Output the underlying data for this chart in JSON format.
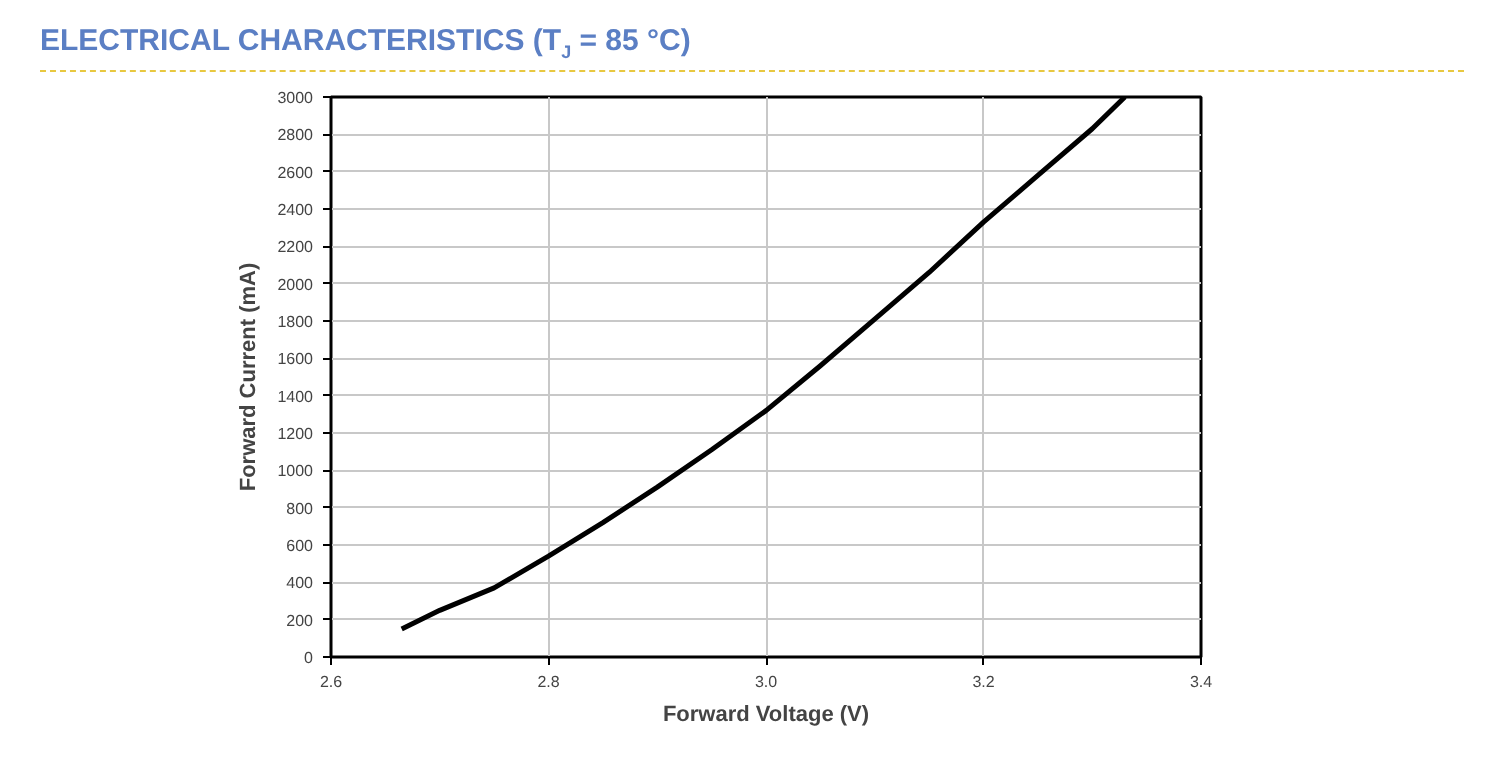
{
  "chart_data": {
    "type": "line",
    "title": "ELECTRICAL CHARACTERISTICS (T$_{J}$ = 85 °C)",
    "xlabel": "Forward Voltage (V)",
    "ylabel": "Forward Current (mA)",
    "series": [
      {
        "color": "#000000",
        "x": [
          2.665,
          2.7,
          2.75,
          2.8,
          2.85,
          2.9,
          2.95,
          3.0,
          3.05,
          3.1,
          3.15,
          3.2,
          3.25,
          3.3,
          3.33
        ],
        "values": [
          150,
          250,
          370,
          540,
          720,
          910,
          1110,
          1320,
          1560,
          1810,
          2060,
          2330,
          2580,
          2830,
          3000
        ]
      }
    ],
    "xlim": [
      2.6,
      3.4
    ],
    "xticks": [
      {
        "value": 2.6,
        "label": "2.6"
      },
      {
        "value": 2.8,
        "label": "2.8"
      },
      {
        "value": 3.0,
        "label": "3.0"
      },
      {
        "value": 3.2,
        "label": "3.2"
      },
      {
        "value": 3.4,
        "label": "3.4"
      }
    ],
    "ylim": [
      0,
      3000
    ],
    "yticks": [
      0,
      200,
      400,
      600,
      800,
      1000,
      1200,
      1400,
      1600,
      1800,
      2000,
      2200,
      2400,
      2600,
      2800,
      3000
    ],
    "grid": true,
    "marker": "none",
    "line_style": "solid"
  }
}
